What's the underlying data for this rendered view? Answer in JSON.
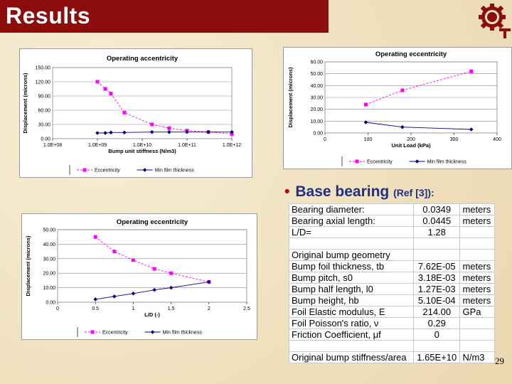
{
  "title": "Results",
  "page_number": "29",
  "bullet": {
    "text": "Base bearing",
    "ref": "(Ref [3]):"
  },
  "params_table": [
    {
      "label": "Bearing diameter:",
      "value": "0.0349",
      "unit": "meters"
    },
    {
      "label": "Bearing axial length:",
      "value": "0.0445",
      "unit": "meters"
    },
    {
      "label": "L/D=",
      "value": "1.28",
      "unit": ""
    },
    {
      "label": "",
      "value": "",
      "unit": ""
    },
    {
      "label": "Original bump geometry",
      "value": "",
      "unit": ""
    },
    {
      "label": "Bump foil thickness, tb",
      "value": "7.62E-05",
      "unit": "meters"
    },
    {
      "label": "Bump pitch, s0",
      "value": "3.18E-03",
      "unit": "meters"
    },
    {
      "label": "Bump half length, l0",
      "value": "1.27E-03",
      "unit": "meters"
    },
    {
      "label": "Bump height, hb",
      "value": "5.10E-04",
      "unit": "meters"
    },
    {
      "label": "Foil Elastic modulus, E",
      "value": "214.00",
      "unit": "GPa"
    },
    {
      "label": "Foil Poisson's ratio, ν",
      "value": "0.29",
      "unit": ""
    },
    {
      "label": "Friction Coefficient, μf",
      "value": "0",
      "unit": ""
    },
    {
      "label": "",
      "value": "",
      "unit": ""
    },
    {
      "label": "Original bump stiffness/area",
      "value": "1.65E+10",
      "unit": "N/m3"
    }
  ],
  "chart_data": [
    {
      "type": "line",
      "title": "Operating accentricity",
      "xlabel": "Bump unit stiffness (N/m3)",
      "ylabel": "Displacement (microns)",
      "xscale": "log",
      "xlim": [
        100000000.0,
        1000000000000.0
      ],
      "ylim": [
        0,
        150
      ],
      "x_ticks": [
        "1.0E+08",
        "1.0E+09",
        "1.0E+10",
        "1.0E+11",
        "1.0E+12"
      ],
      "y_ticks": [
        "0.00",
        "30.00",
        "60.00",
        "90.00",
        "120.00",
        "150.00"
      ],
      "grid": true,
      "legend": "bottom",
      "series": [
        {
          "name": "Eccentricity",
          "color": "#ff00ff",
          "marker": "square",
          "x": [
            1000000000.0,
            1500000000.0,
            2000000000.0,
            4000000000.0,
            16500000000.0,
            40000000000.0,
            100000000000.0,
            300000000000.0,
            1000000000000.0
          ],
          "y": [
            120,
            105,
            95,
            55,
            30,
            22,
            17,
            14,
            10
          ]
        },
        {
          "name": "Min film thickness",
          "color": "#000080",
          "marker": "diamond",
          "x": [
            1000000000.0,
            1500000000.0,
            2000000000.0,
            4000000000.0,
            16500000000.0,
            40000000000.0,
            100000000000.0,
            300000000000.0,
            1000000000000.0
          ],
          "y": [
            12,
            12,
            13,
            13,
            14,
            14,
            14,
            14,
            14
          ]
        }
      ]
    },
    {
      "type": "line",
      "title": "Operating eccentricity",
      "xlabel": "Unit Load (kPa)",
      "ylabel": "Displacement (microns)",
      "xlim": [
        0,
        400
      ],
      "ylim": [
        0,
        60
      ],
      "x_ticks": [
        "0",
        "100",
        "200",
        "300",
        "400"
      ],
      "y_ticks": [
        "0.00",
        "10.00",
        "20.00",
        "30.00",
        "40.00",
        "50.00",
        "60.00"
      ],
      "grid": true,
      "legend": "bottom",
      "series": [
        {
          "name": "Eccentricity",
          "color": "#ff00ff",
          "marker": "square",
          "x": [
            95,
            180,
            340
          ],
          "y": [
            24,
            36,
            52
          ]
        },
        {
          "name": "Min film thickness",
          "color": "#000080",
          "marker": "diamond",
          "x": [
            95,
            180,
            340
          ],
          "y": [
            9,
            5,
            3
          ]
        }
      ]
    },
    {
      "type": "line",
      "title": "Operating eccentricity",
      "xlabel": "L/D (-)",
      "ylabel": "Displacement (microns)",
      "xlim": [
        0,
        2.5
      ],
      "ylim": [
        0,
        50
      ],
      "x_ticks": [
        "0",
        "0.5",
        "1",
        "1.5",
        "2",
        "2.5"
      ],
      "y_ticks": [
        "0.00",
        "10.00",
        "20.00",
        "30.00",
        "40.00",
        "50.00"
      ],
      "grid": true,
      "legend": "bottom",
      "series": [
        {
          "name": "Eccentricity",
          "color": "#ff00ff",
          "marker": "square",
          "x": [
            0.5,
            0.75,
            1.0,
            1.28,
            1.5,
            2.0
          ],
          "y": [
            45,
            35,
            29,
            23,
            20,
            14
          ]
        },
        {
          "name": "Min film thickness",
          "color": "#000080",
          "marker": "diamond",
          "x": [
            0.5,
            0.75,
            1.0,
            1.28,
            1.5,
            2.0
          ],
          "y": [
            2,
            4,
            6,
            8.5,
            10,
            14
          ]
        }
      ]
    }
  ]
}
